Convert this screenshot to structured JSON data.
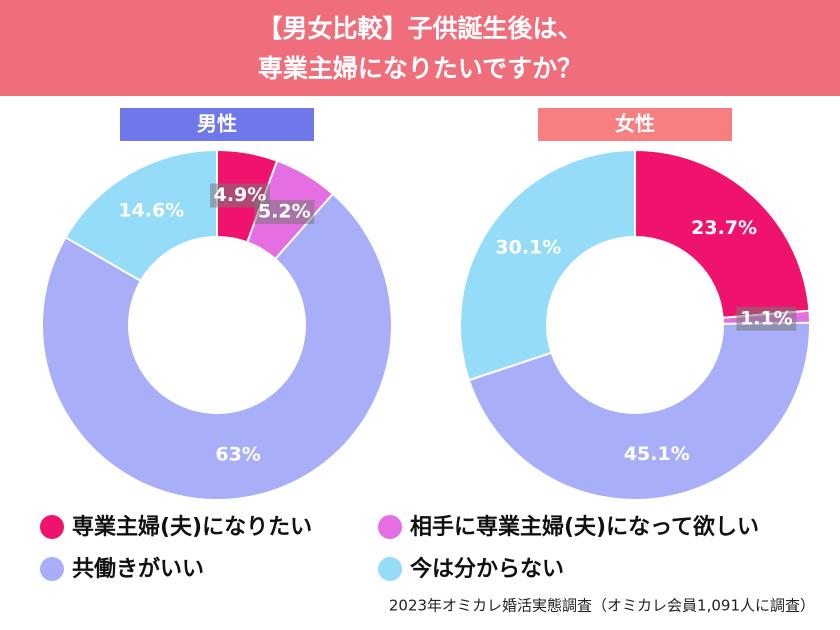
{
  "title": [
    "【男女比較】子供誕生後は、",
    "専業主婦になりたいですか？"
  ],
  "source": "2023年オミカレ婚活実態調査（オミカレ会員1,091人に調査）",
  "chart_data": [
    {
      "type": "pie",
      "title": "男性",
      "title_color": "#6f78e8",
      "categories": [
        "専業主婦(夫)になりたい",
        "相手に専業主婦(夫)になって欲しい",
        "共働きがいい",
        "今は分からない"
      ],
      "values": [
        4.9,
        5.2,
        63,
        14.6
      ],
      "value_labels": [
        "4.9%",
        "5.2%",
        "63%",
        "14.6%"
      ],
      "colors": [
        "#f0136e",
        "#e46ee2",
        "#a9aef8",
        "#94dcf8"
      ]
    },
    {
      "type": "pie",
      "title": "女性",
      "title_color": "#f77f7f",
      "categories": [
        "専業主婦(夫)になりたい",
        "相手に専業主婦(夫)になって欲しい",
        "共働きがいい",
        "今は分からない"
      ],
      "values": [
        23.7,
        1.1,
        45.1,
        30.1
      ],
      "value_labels": [
        "23.7%",
        "1.1%",
        "45.1%",
        "30.1%"
      ],
      "colors": [
        "#f0136e",
        "#e46ee2",
        "#a9aef8",
        "#94dcf8"
      ]
    }
  ]
}
